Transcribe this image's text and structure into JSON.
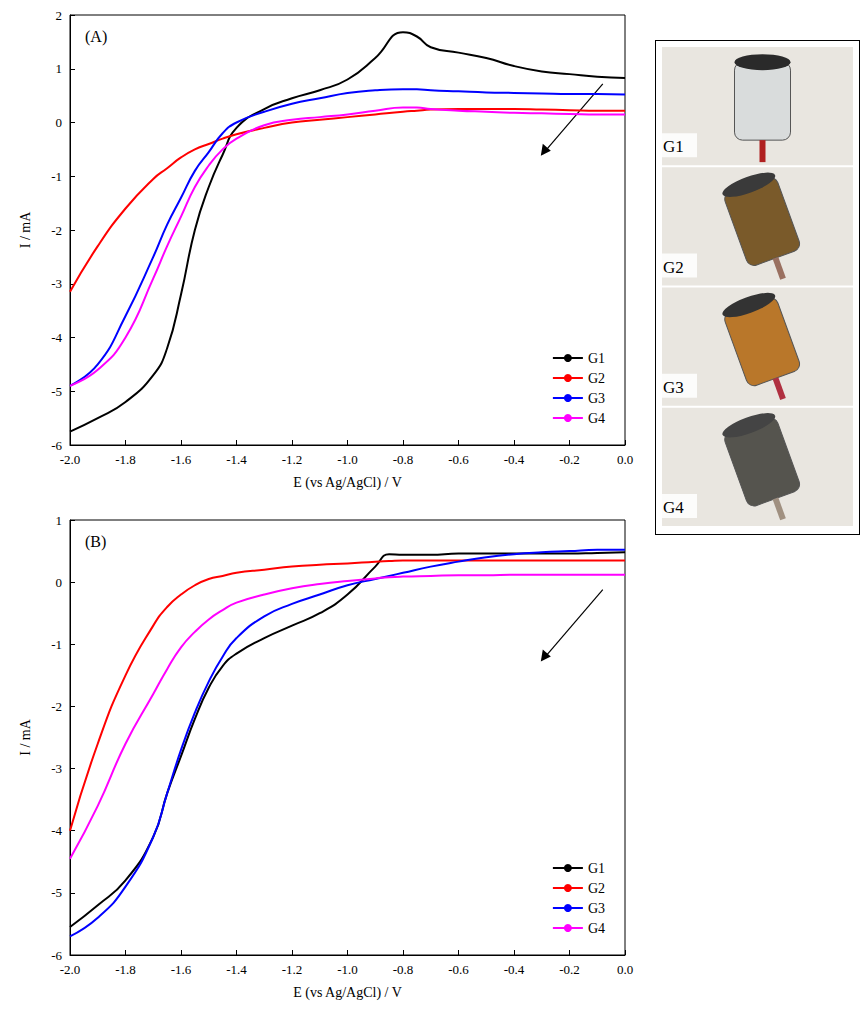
{
  "chart_data": [
    {
      "type": "line",
      "title": "(A)",
      "x_label": "E (vs Ag/AgCl) / V",
      "y_label": "I / mA",
      "x": [
        -2.0,
        -1.9,
        -1.8,
        -1.7,
        -1.65,
        -1.6,
        -1.55,
        -1.5,
        -1.45,
        -1.4,
        -1.3,
        -1.2,
        -1.1,
        -1.0,
        -0.9,
        -0.8,
        -0.75,
        -0.7,
        -0.6,
        -0.5,
        -0.4,
        -0.3,
        -0.2,
        -0.1,
        0.0
      ],
      "series": [
        {
          "name": "G1",
          "color": "#000000",
          "values": [
            -5.75,
            -5.5,
            -5.2,
            -4.7,
            -4.2,
            -3.2,
            -2.0,
            -1.2,
            -0.6,
            -0.1,
            0.25,
            0.45,
            0.6,
            0.8,
            1.2,
            1.68,
            1.6,
            1.4,
            1.3,
            1.2,
            1.05,
            0.95,
            0.9,
            0.85,
            0.83
          ]
        },
        {
          "name": "G2",
          "color": "#ff0000",
          "values": [
            -3.15,
            -2.3,
            -1.6,
            -1.05,
            -0.85,
            -0.65,
            -0.5,
            -0.4,
            -0.3,
            -0.22,
            -0.1,
            0.0,
            0.05,
            0.1,
            0.15,
            0.2,
            0.22,
            0.24,
            0.25,
            0.25,
            0.25,
            0.24,
            0.23,
            0.22,
            0.22
          ]
        },
        {
          "name": "G3",
          "color": "#0000ff",
          "values": [
            -4.9,
            -4.5,
            -3.6,
            -2.5,
            -1.9,
            -1.4,
            -0.9,
            -0.55,
            -0.2,
            0.0,
            0.2,
            0.35,
            0.45,
            0.55,
            0.6,
            0.62,
            0.62,
            0.6,
            0.58,
            0.56,
            0.55,
            0.54,
            0.53,
            0.53,
            0.52
          ]
        },
        {
          "name": "G4",
          "color": "#ff00ff",
          "values": [
            -4.9,
            -4.6,
            -4.0,
            -2.9,
            -2.3,
            -1.75,
            -1.2,
            -0.8,
            -0.5,
            -0.3,
            -0.05,
            0.05,
            0.1,
            0.15,
            0.22,
            0.28,
            0.28,
            0.25,
            0.22,
            0.2,
            0.18,
            0.17,
            0.16,
            0.15,
            0.15
          ]
        }
      ],
      "xlim": [
        -2.0,
        0.0
      ],
      "xticks": [
        {
          "value": -2.0,
          "label": "-2.0"
        },
        {
          "value": -1.8,
          "label": "-1.8"
        },
        {
          "value": -1.6,
          "label": "-1.6"
        },
        {
          "value": -1.4,
          "label": "-1.4"
        },
        {
          "value": -1.2,
          "label": "-1.2"
        },
        {
          "value": -1.0,
          "label": "-1.0"
        },
        {
          "value": -0.8,
          "label": "-0.8"
        },
        {
          "value": -0.6,
          "label": "-0.6"
        },
        {
          "value": -0.4,
          "label": "-0.4"
        },
        {
          "value": -0.2,
          "label": "-0.2"
        },
        {
          "value": 0.0,
          "label": "0.0"
        }
      ],
      "ylim": [
        -6,
        2
      ],
      "yticks": [
        -6,
        -5,
        -4,
        -3,
        -2,
        -1,
        0,
        1,
        2
      ],
      "grid": false,
      "legend": "lower right"
    },
    {
      "type": "line",
      "title": "(B)",
      "x_label": "E (vs Ag/AgCl) / V",
      "y_label": "I / mA",
      "x": [
        -2.0,
        -1.9,
        -1.8,
        -1.7,
        -1.65,
        -1.6,
        -1.55,
        -1.5,
        -1.45,
        -1.4,
        -1.3,
        -1.2,
        -1.1,
        -1.0,
        -0.9,
        -0.85,
        -0.8,
        -0.7,
        -0.6,
        -0.5,
        -0.4,
        -0.3,
        -0.2,
        -0.1,
        0.0
      ],
      "series": [
        {
          "name": "G1",
          "color": "#000000",
          "values": [
            -5.55,
            -5.2,
            -4.8,
            -4.1,
            -3.4,
            -2.8,
            -2.2,
            -1.7,
            -1.35,
            -1.15,
            -0.9,
            -0.7,
            -0.5,
            -0.2,
            0.25,
            0.45,
            0.44,
            0.44,
            0.46,
            0.46,
            0.46,
            0.46,
            0.46,
            0.47,
            0.48
          ]
        },
        {
          "name": "G2",
          "color": "#ff0000",
          "values": [
            -4.0,
            -2.6,
            -1.5,
            -0.7,
            -0.4,
            -0.2,
            -0.05,
            0.05,
            0.1,
            0.15,
            0.2,
            0.25,
            0.28,
            0.3,
            0.33,
            0.34,
            0.35,
            0.35,
            0.35,
            0.35,
            0.35,
            0.35,
            0.35,
            0.35,
            0.35
          ]
        },
        {
          "name": "G3",
          "color": "#0000ff",
          "values": [
            -5.7,
            -5.4,
            -4.9,
            -4.1,
            -3.4,
            -2.7,
            -2.1,
            -1.6,
            -1.2,
            -0.9,
            -0.55,
            -0.35,
            -0.2,
            -0.05,
            0.05,
            0.1,
            0.15,
            0.25,
            0.33,
            0.4,
            0.45,
            0.48,
            0.5,
            0.52,
            0.52
          ]
        },
        {
          "name": "G4",
          "color": "#ff00ff",
          "values": [
            -4.45,
            -3.6,
            -2.6,
            -1.8,
            -1.4,
            -1.05,
            -0.8,
            -0.6,
            -0.45,
            -0.33,
            -0.2,
            -0.1,
            -0.03,
            0.02,
            0.06,
            0.08,
            0.09,
            0.1,
            0.11,
            0.11,
            0.12,
            0.12,
            0.12,
            0.12,
            0.12
          ]
        }
      ],
      "xlim": [
        -2.0,
        0.0
      ],
      "xticks": [
        {
          "value": -2.0,
          "label": "-2.0"
        },
        {
          "value": -1.8,
          "label": "-1.8"
        },
        {
          "value": -1.6,
          "label": "-1.6"
        },
        {
          "value": -1.4,
          "label": "-1.4"
        },
        {
          "value": -1.2,
          "label": "-1.2"
        },
        {
          "value": -1.0,
          "label": "-1.0"
        },
        {
          "value": -0.8,
          "label": "-0.8"
        },
        {
          "value": -0.6,
          "label": "-0.6"
        },
        {
          "value": -0.4,
          "label": "-0.4"
        },
        {
          "value": -0.2,
          "label": "-0.2"
        },
        {
          "value": 0.0,
          "label": "0.0"
        }
      ],
      "ylim": [
        -6,
        1
      ],
      "yticks": [
        -6,
        -5,
        -4,
        -3,
        -2,
        -1,
        0,
        1
      ],
      "grid": false,
      "legend": "lower right"
    }
  ],
  "photo_panel": {
    "labels": [
      "G1",
      "G2",
      "G3",
      "G4"
    ]
  }
}
